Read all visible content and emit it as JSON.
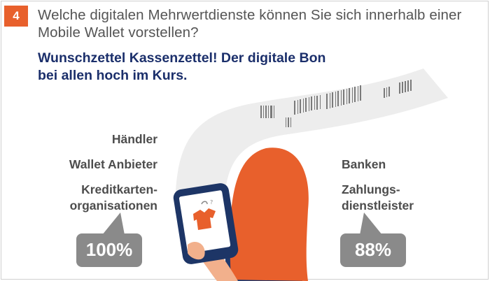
{
  "badge": {
    "number": "4"
  },
  "question": "Welche digitalen Mehrwertdienste können Sie sich innerhalb einer Mobile Wallet vorstellen?",
  "headline": {
    "line1": "Wunschzettel Kassenzettel! Der digitale Bon",
    "line2": "bei allen hoch im Kurs."
  },
  "left_group": {
    "labels": [
      "Händler",
      "Wallet Anbieter",
      "Kreditkarten-",
      "organisationen"
    ],
    "value": "100%"
  },
  "right_group": {
    "labels": [
      "Banken",
      "Zahlungs-",
      "dienstleister"
    ],
    "value": "88%"
  },
  "colors": {
    "accent_orange": "#e8602c",
    "headline_blue": "#1b2f6b",
    "bubble_gray": "#8a8a8a",
    "receipt_gray": "#ededed",
    "phone_navy": "#1d3566"
  }
}
